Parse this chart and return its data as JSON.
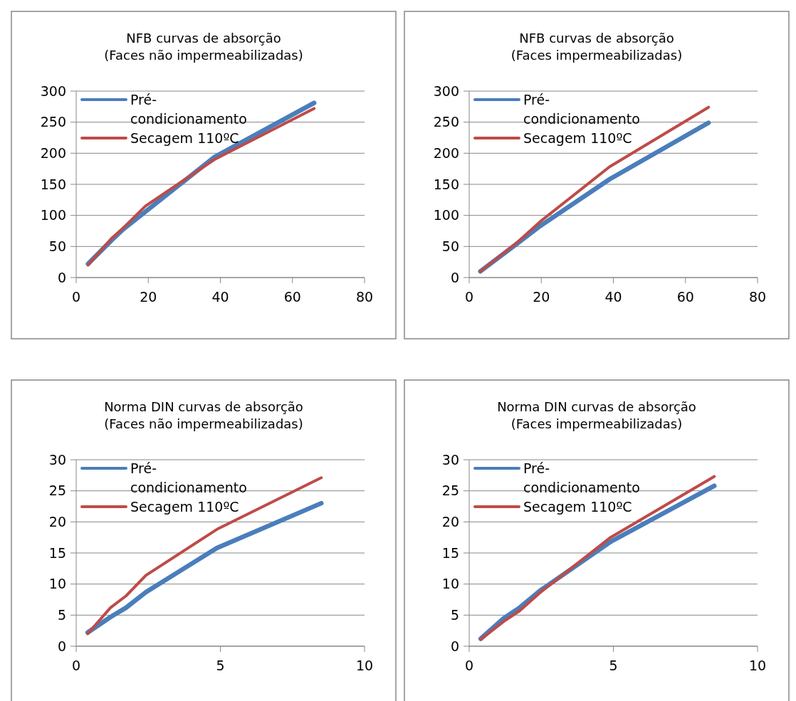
{
  "chart_data": [
    {
      "type": "line",
      "title": "NFB curvas de absorção",
      "subtitle": "(Faces não impermeabilizadas)",
      "xlim": [
        0,
        80
      ],
      "xticks": [
        0,
        20,
        40,
        60,
        80
      ],
      "ylim": [
        0,
        300
      ],
      "yticks": [
        0,
        50,
        100,
        150,
        200,
        250,
        300
      ],
      "grid": "y",
      "legend": "top left",
      "marker": "none",
      "line_style": "solid",
      "x": [
        3.3,
        9.8,
        13.1,
        19.2,
        38.4,
        66
      ],
      "series": [
        {
          "name": "Pré-condicionamento",
          "color": "#4a7ebb",
          "values": [
            22,
            60,
            78,
            106,
            194,
            281
          ]
        },
        {
          "name": "Secagem 110ºC",
          "color": "#be4b48",
          "values": [
            20,
            63,
            80,
            115,
            190,
            272
          ]
        }
      ]
    },
    {
      "type": "line",
      "title": "NFB curvas de absorção",
      "subtitle": "(Faces impermeabilizadas)",
      "xlim": [
        0,
        80
      ],
      "xticks": [
        0,
        20,
        40,
        60,
        80
      ],
      "ylim": [
        0,
        300
      ],
      "yticks": [
        0,
        50,
        100,
        150,
        200,
        250,
        300
      ],
      "grid": "y",
      "legend": "top left",
      "marker": "none",
      "line_style": "solid",
      "x": [
        3.1,
        13.4,
        19.7,
        38.9,
        66.4
      ],
      "series": [
        {
          "name": "Pré-condicionamento",
          "color": "#4a7ebb",
          "values": [
            10,
            55,
            83,
            158,
            249
          ]
        },
        {
          "name": "Secagem 110ºC",
          "color": "#be4b48",
          "values": [
            10,
            57,
            90,
            178,
            274
          ]
        }
      ]
    },
    {
      "type": "line",
      "title": "Norma DIN curvas de absorção",
      "subtitle": "(Faces não impermeabilizadas)",
      "xlim": [
        0,
        10
      ],
      "xticks": [
        0,
        5,
        10
      ],
      "ylim": [
        0,
        30
      ],
      "yticks": [
        0,
        5,
        10,
        15,
        20,
        25,
        30
      ],
      "grid": "y",
      "legend": "top left",
      "marker": "none",
      "line_style": "solid",
      "x": [
        0.4,
        1.19,
        1.73,
        2.42,
        4.88,
        8.5
      ],
      "series": [
        {
          "name": "Pré-condicionamento",
          "color": "#4a7ebb",
          "values": [
            2.2,
            4.7,
            6.2,
            8.7,
            15.8,
            23
          ]
        },
        {
          "name": "Secagem 110ºC",
          "color": "#be4b48",
          "values": [
            2,
            6.2,
            8.1,
            11.4,
            18.8,
            27.1
          ]
        }
      ]
    },
    {
      "type": "line",
      "title": "Norma DIN curvas de absorção",
      "subtitle": "(Faces impermeabilizadas)",
      "xlim": [
        0,
        10
      ],
      "xticks": [
        0,
        5,
        10
      ],
      "ylim": [
        0,
        30
      ],
      "yticks": [
        0,
        5,
        10,
        15,
        20,
        25,
        30
      ],
      "grid": "y",
      "legend": "top left",
      "marker": "none",
      "line_style": "solid",
      "x": [
        0.4,
        1.2,
        1.75,
        2.45,
        4.9,
        8.5
      ],
      "series": [
        {
          "name": "Pré-condicionamento",
          "color": "#4a7ebb",
          "values": [
            1.2,
            4.5,
            6.2,
            8.9,
            16.8,
            25.8
          ]
        },
        {
          "name": "Secagem 110ºC",
          "color": "#be4b48",
          "values": [
            1.1,
            4,
            5.7,
            8.6,
            17.5,
            27.3
          ]
        }
      ]
    }
  ]
}
